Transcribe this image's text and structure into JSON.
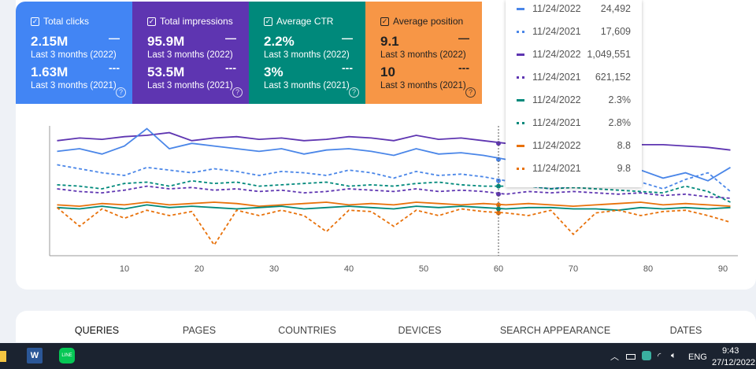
{
  "cards": [
    {
      "title": "Total clicks",
      "value_2022": "2.15M",
      "label_2022": "Last 3 months (2022)",
      "value_2021": "1.63M",
      "label_2021": "Last 3 months (2021)",
      "color": "#4285f4"
    },
    {
      "title": "Total impressions",
      "value_2022": "95.9M",
      "label_2022": "Last 3 months (2022)",
      "value_2021": "53.5M",
      "label_2021": "Last 3 months (2021)",
      "color": "#5e35b1"
    },
    {
      "title": "Average CTR",
      "value_2022": "2.2%",
      "label_2022": "Last 3 months (2022)",
      "value_2021": "3%",
      "label_2021": "Last 3 months (2021)",
      "color": "#00897b"
    },
    {
      "title": "Average position",
      "value_2022": "9.1",
      "label_2022": "Last 3 months (2022)",
      "value_2021": "10",
      "label_2021": "Last 3 months (2021)",
      "color": "#f79646"
    }
  ],
  "tooltip": [
    {
      "date": "11/24/2022",
      "value": "24,492",
      "color": "#4a86e8",
      "dashed": false
    },
    {
      "date": "11/24/2021",
      "value": "17,609",
      "color": "#4a86e8",
      "dashed": true
    },
    {
      "date": "11/24/2022",
      "value": "1,049,551",
      "color": "#5e35b1",
      "dashed": false
    },
    {
      "date": "11/24/2021",
      "value": "621,152",
      "color": "#5e35b1",
      "dashed": true
    },
    {
      "date": "11/24/2022",
      "value": "2.3%",
      "color": "#00897b",
      "dashed": false
    },
    {
      "date": "11/24/2021",
      "value": "2.8%",
      "color": "#00897b",
      "dashed": true
    },
    {
      "date": "11/24/2022",
      "value": "8.8",
      "color": "#e8710a",
      "dashed": false
    },
    {
      "date": "11/24/2021",
      "value": "9.8",
      "color": "#e8710a",
      "dashed": true
    }
  ],
  "chart_data": {
    "type": "line",
    "x_start": 1,
    "x_step": 3,
    "xticks": [
      "10",
      "20",
      "30",
      "40",
      "50",
      "60",
      "70",
      "80",
      "90"
    ],
    "xtick_values": [
      10,
      20,
      30,
      40,
      50,
      60,
      70,
      80,
      90
    ],
    "xlim": [
      0,
      92
    ],
    "ylim": [
      0,
      100
    ],
    "hover_x": 60,
    "series": [
      {
        "name": "Impressions 2022",
        "color": "#5e35b1",
        "dashed": false,
        "values": [
          86,
          88,
          87,
          89,
          90,
          92,
          86,
          88,
          89,
          87,
          88,
          86,
          87,
          89,
          88,
          86,
          90,
          87,
          88,
          86,
          84,
          86,
          85,
          84,
          83,
          82,
          83,
          83,
          82,
          81,
          79
        ]
      },
      {
        "name": "Clicks 2022",
        "color": "#4a86e8",
        "dashed": false,
        "values": [
          78,
          80,
          76,
          82,
          95,
          80,
          84,
          82,
          80,
          78,
          80,
          76,
          79,
          80,
          78,
          75,
          80,
          76,
          77,
          75,
          72,
          70,
          62,
          65,
          62,
          60,
          64,
          58,
          62,
          56,
          66
        ]
      },
      {
        "name": "Clicks 2021",
        "color": "#4a86e8",
        "dashed": true,
        "values": [
          68,
          65,
          62,
          60,
          66,
          64,
          62,
          65,
          63,
          60,
          63,
          62,
          60,
          64,
          62,
          58,
          63,
          60,
          61,
          59,
          56,
          52,
          50,
          52,
          54,
          52,
          55,
          50,
          57,
          62,
          48
        ]
      },
      {
        "name": "Impressions 2021",
        "color": "#5e35b1",
        "dashed": true,
        "values": [
          50,
          48,
          47,
          49,
          52,
          50,
          51,
          49,
          50,
          48,
          49,
          47,
          48,
          50,
          49,
          48,
          50,
          48,
          49,
          48,
          46,
          48,
          47,
          48,
          47,
          46,
          47,
          45,
          46,
          44,
          43
        ]
      },
      {
        "name": "CTR 2021",
        "color": "#00897b",
        "dashed": true,
        "values": [
          53,
          52,
          50,
          54,
          55,
          52,
          56,
          54,
          55,
          52,
          53,
          54,
          55,
          52,
          53,
          52,
          54,
          55,
          53,
          52,
          52,
          52,
          50,
          51,
          50,
          49,
          48,
          47,
          52,
          48,
          40
        ]
      },
      {
        "name": "Position 2022",
        "color": "#e8710a",
        "dashed": false,
        "values": [
          38,
          37,
          39,
          38,
          40,
          38,
          39,
          40,
          39,
          37,
          38,
          39,
          40,
          38,
          39,
          38,
          40,
          39,
          38,
          39,
          38,
          39,
          38,
          37,
          38,
          39,
          40,
          38,
          39,
          38,
          37
        ]
      },
      {
        "name": "CTR 2022",
        "color": "#00897b",
        "dashed": false,
        "values": [
          36,
          35,
          37,
          35,
          38,
          36,
          37,
          36,
          35,
          36,
          37,
          35,
          36,
          37,
          36,
          35,
          37,
          36,
          37,
          36,
          35,
          36,
          36,
          35,
          35,
          34,
          36,
          35,
          36,
          35,
          36
        ]
      },
      {
        "name": "Position 2021",
        "color": "#e8710a",
        "dashed": true,
        "values": [
          36,
          22,
          35,
          28,
          34,
          30,
          33,
          8,
          34,
          30,
          34,
          30,
          18,
          34,
          33,
          22,
          34,
          30,
          35,
          33,
          32,
          30,
          34,
          16,
          32,
          34,
          30,
          33,
          34,
          30,
          25
        ]
      }
    ]
  },
  "tabs": [
    "QUERIES",
    "PAGES",
    "COUNTRIES",
    "DEVICES",
    "SEARCH APPEARANCE",
    "DATES"
  ],
  "taskbar": {
    "lang": "ENG",
    "time": "9:43",
    "date": "27/12/2022"
  }
}
